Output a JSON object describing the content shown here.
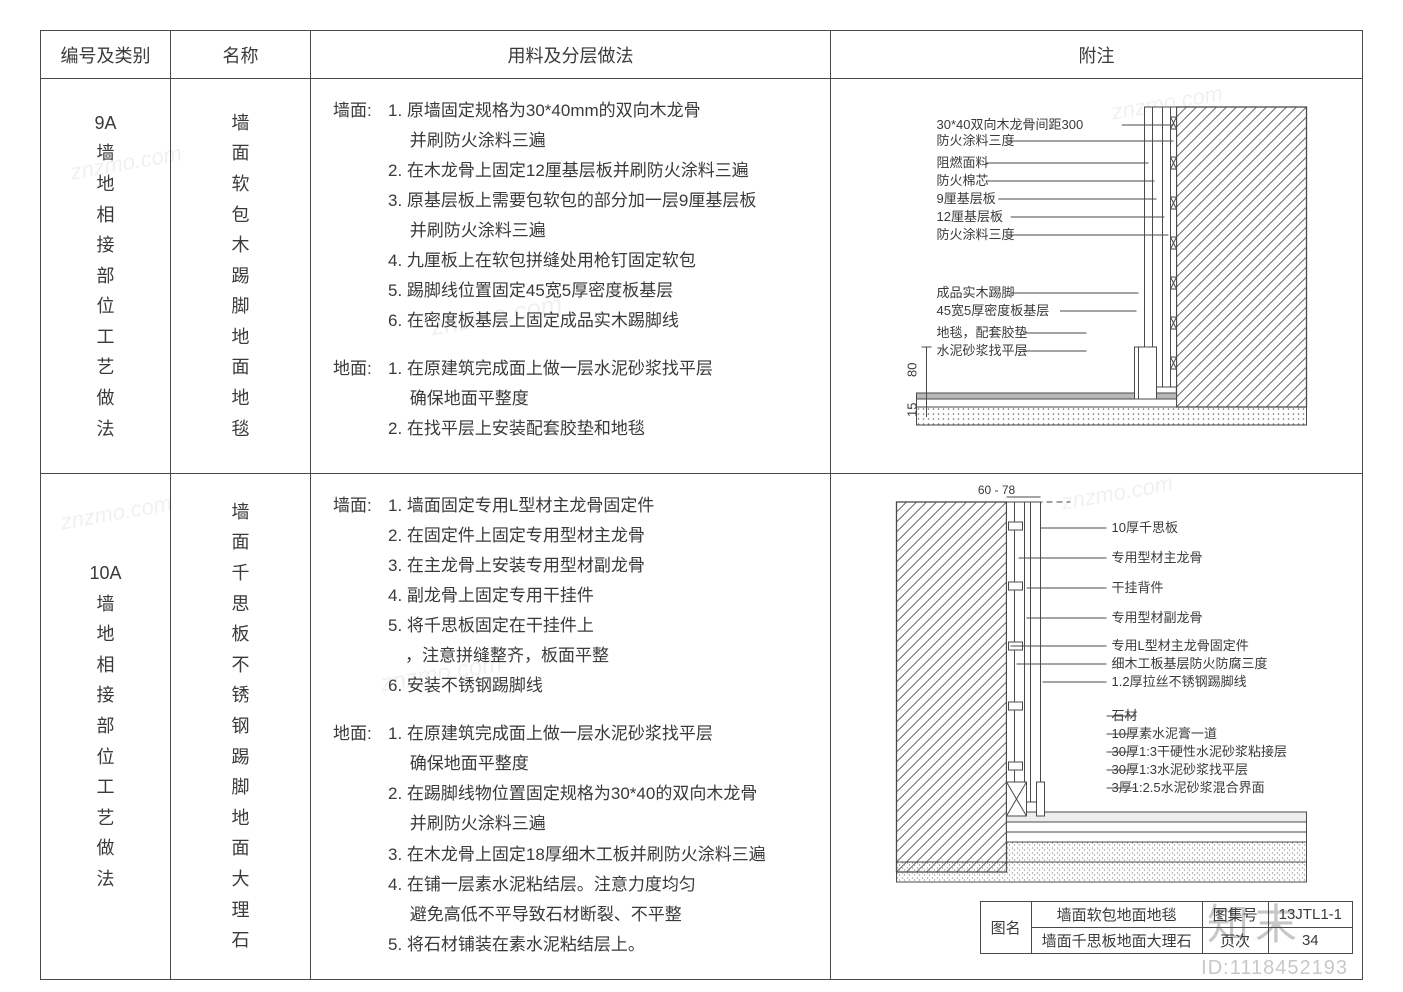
{
  "headers": {
    "id": "编号及类别",
    "name": "名称",
    "method": "用料及分层做法",
    "note": "附注"
  },
  "rows": [
    {
      "id_lines": [
        "9A",
        "墙",
        "地",
        "相",
        "接",
        "部",
        "位",
        "工",
        "艺",
        "做",
        "法"
      ],
      "name_lines": [
        "墙",
        "面",
        "软",
        "包",
        "木",
        "踢",
        "脚",
        "地",
        "面",
        "地",
        "毯"
      ],
      "wall_label": "墙面:",
      "floor_label": "地面:",
      "wall_method": [
        "1. 原墙固定规格为30*40mm的双向木龙骨",
        "　 并刷防火涂料三遍",
        "2. 在木龙骨上固定12厘基层板并刷防火涂料三遍",
        "3. 原基层板上需要包软包的部分加一层9厘基层板",
        "　 并刷防火涂料三遍",
        "4. 九厘板上在软包拼缝处用枪钉固定软包",
        "5. 踢脚线位置固定45宽5厚密度板基层",
        "6. 在密度板基层上固定成品实木踢脚线"
      ],
      "floor_method": [
        "1. 在原建筑完成面上做一层水泥砂浆找平层",
        "　 确保地面平整度",
        "2. 在找平层上安装配套胶垫和地毯"
      ],
      "diagram": {
        "labels": [
          "30*40双向木龙骨间距300",
          "防火涂料三度",
          "阻燃面料",
          "防火棉芯",
          "9厘基层板",
          "12厘基层板",
          "防火涂料三度",
          "成品实木踢脚",
          "45宽5厚密度板基层",
          "地毯，配套胶垫",
          "水泥砂浆找平层"
        ],
        "dims": {
          "v80": "80",
          "v15": "15"
        },
        "colors": {
          "line": "#4a4a4a",
          "hatch": "#6a6a6a",
          "fill": "#b8b8b8"
        }
      }
    },
    {
      "id_lines": [
        "10A",
        "墙",
        "地",
        "相",
        "接",
        "部",
        "位",
        "工",
        "艺",
        "做",
        "法"
      ],
      "name_lines": [
        "墙",
        "面",
        "千",
        "思",
        "板",
        "不",
        "锈",
        "钢",
        "踢",
        "脚",
        "地",
        "面",
        "大",
        "理",
        "石"
      ],
      "wall_label": "墙面:",
      "floor_label": "地面:",
      "wall_method": [
        "1. 墙面固定专用L型材主龙骨固定件",
        "2. 在固定件上固定专用型材主龙骨",
        "3. 在主龙骨上安装专用型材副龙骨",
        "4. 副龙骨上固定专用干挂件",
        "5. 将千思板固定在干挂件上",
        "　，注意拼缝整齐，板面平整",
        "6. 安装不锈钢踢脚线"
      ],
      "floor_method": [
        "1. 在原建筑完成面上做一层水泥砂浆找平层",
        "　 确保地面平整度",
        "2. 在踢脚线物位置固定规格为30*40的双向木龙骨",
        "　 并刷防火涂料三遍",
        "3. 在木龙骨上固定18厚细木工板并刷防火涂料三遍",
        "4. 在铺一层素水泥粘结层。注意力度均匀",
        "　 避免高低不平导致石材断裂、不平整",
        "5. 将石材铺装在素水泥粘结层上。"
      ],
      "diagram": {
        "top_dim": "60 - 78",
        "labels": [
          "10厚千思板",
          "专用型材主龙骨",
          "干挂背件",
          "专用型材副龙骨",
          "专用L型材主龙骨固定件",
          "细木工板基层防火防腐三度",
          "1.2厚拉丝不锈钢踢脚线",
          "石材",
          "10厚素水泥膏一道",
          "30厚1:3干硬性水泥砂浆粘接层",
          "30厚1:3水泥砂浆找平层",
          "3厚1:2.5水泥砂浆混合界面"
        ],
        "colors": {
          "line": "#4a4a4a",
          "hatch": "#6a6a6a",
          "sand": "#9a9a9a"
        }
      }
    }
  ],
  "title_block": {
    "tuming": "图名",
    "line1": "墙面软包地面地毯",
    "line2": "墙面千思板地面大理石",
    "tujihao": "图集号",
    "tujihao_val": "13JTL1-1",
    "yeci": "页次",
    "yeci_val": "34"
  },
  "watermarks": {
    "domain": "znzmo.com",
    "brand": "知末",
    "id": "ID:1118452193"
  }
}
